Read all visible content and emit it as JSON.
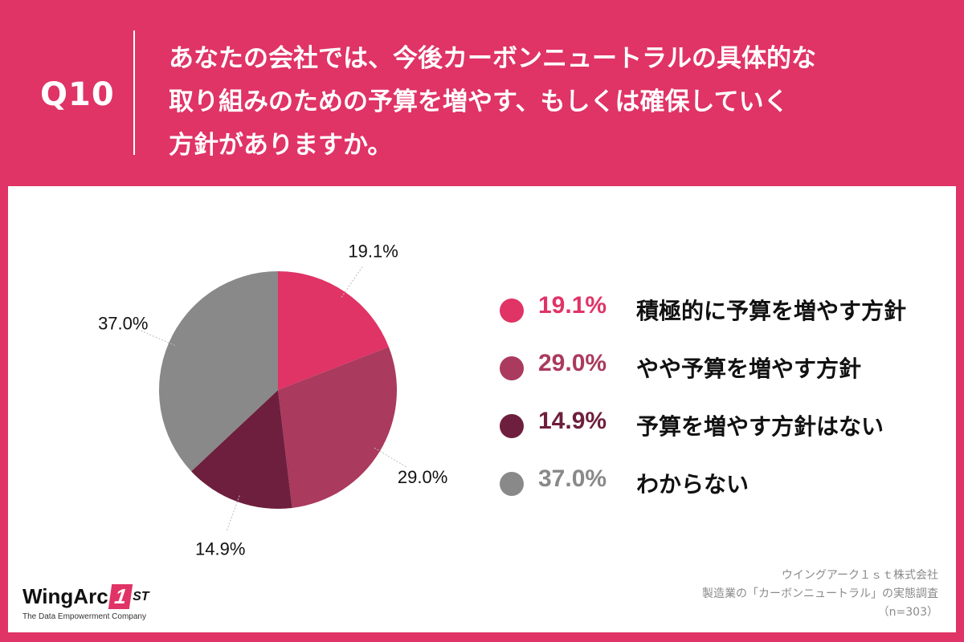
{
  "header": {
    "question_number": "Q10",
    "question_lines": [
      "あなたの会社では、今後カーボンニュートラルの具体的な",
      "取り組みのための予算を増やす、もしくは確保していく",
      "方針がありますか。"
    ]
  },
  "colors": {
    "background": "#E03366",
    "panel": "#FFFFFF"
  },
  "chart_data": {
    "type": "pie",
    "unit": "%",
    "categories": [
      "積極的に予算を増やす方針",
      "やや予算を増やす方針",
      "予算を増やす方針はない",
      "わからない"
    ],
    "values": [
      19.1,
      29.0,
      14.9,
      37.0
    ],
    "value_labels": [
      "19.1%",
      "29.0%",
      "14.9%",
      "37.0%"
    ],
    "colors": [
      "#E03366",
      "#AA3A5E",
      "#6E1F3D",
      "#898989"
    ],
    "start": "12 o'clock, clockwise",
    "legend_position": "right"
  },
  "legend": {
    "items": [
      {
        "pct": "19.1%",
        "label": "積極的に予算を増やす方針",
        "color": "#E03366"
      },
      {
        "pct": "29.0%",
        "label": "やや予算を増やす方針",
        "color": "#AA3A5E"
      },
      {
        "pct": "14.9%",
        "label": "予算を増やす方針はない",
        "color": "#6E1F3D"
      },
      {
        "pct": "37.0%",
        "label": "わからない",
        "color": "#898989"
      }
    ]
  },
  "footer": {
    "logo_text": "WingArc",
    "logo_mark": "1",
    "logo_suffix": "ST",
    "logo_tagline": "The Data Empowerment Company",
    "source_lines": [
      "ウイングアーク１ｓｔ株式会社",
      "製造業の「カーボンニュートラル」の実態調査",
      "（n=303）"
    ]
  }
}
